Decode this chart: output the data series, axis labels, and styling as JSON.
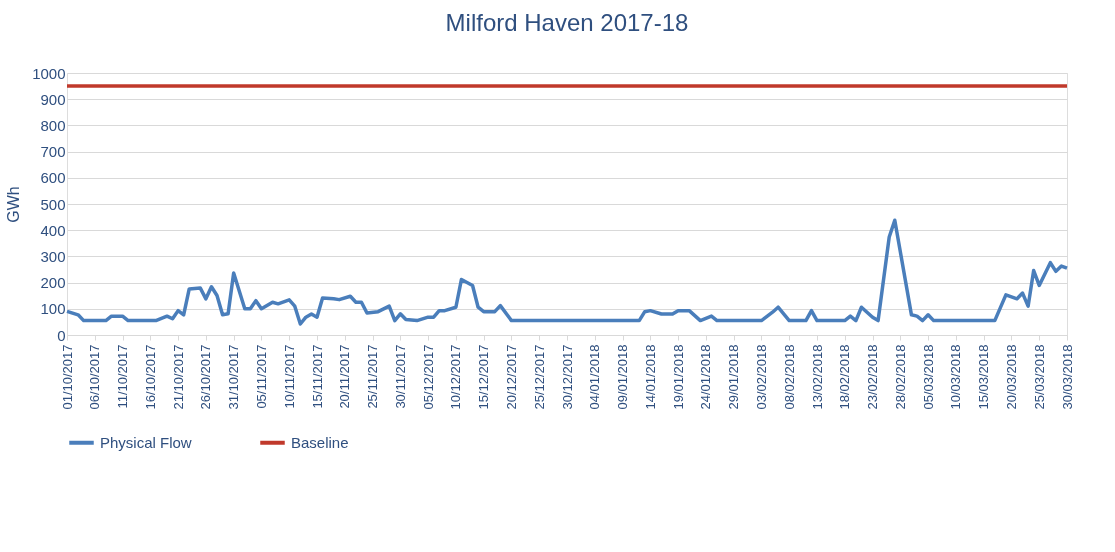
{
  "chart_data": {
    "type": "line",
    "title": "Milford Haven 2017-18",
    "ylabel": "GWh",
    "ylim": [
      0,
      1000
    ],
    "yticks": [
      0,
      100,
      200,
      300,
      400,
      500,
      600,
      700,
      800,
      900,
      1000
    ],
    "xlim": [
      "2017-10-01",
      "2018-03-30"
    ],
    "xticks": [
      {
        "value": "2017-10-01",
        "label": "01/10/2017"
      },
      {
        "value": "2017-10-06",
        "label": "06/10/2017"
      },
      {
        "value": "2017-10-11",
        "label": "11/10/2017"
      },
      {
        "value": "2017-10-16",
        "label": "16/10/2017"
      },
      {
        "value": "2017-10-21",
        "label": "21/10/2017"
      },
      {
        "value": "2017-10-26",
        "label": "26/10/2017"
      },
      {
        "value": "2017-10-31",
        "label": "31/10/2017"
      },
      {
        "value": "2017-11-05",
        "label": "05/11/2017"
      },
      {
        "value": "2017-11-10",
        "label": "10/11/2017"
      },
      {
        "value": "2017-11-15",
        "label": "15/11/2017"
      },
      {
        "value": "2017-11-20",
        "label": "20/11/2017"
      },
      {
        "value": "2017-11-25",
        "label": "25/11/2017"
      },
      {
        "value": "2017-11-30",
        "label": "30/11/2017"
      },
      {
        "value": "2017-12-05",
        "label": "05/12/2017"
      },
      {
        "value": "2017-12-10",
        "label": "10/12/2017"
      },
      {
        "value": "2017-12-15",
        "label": "15/12/2017"
      },
      {
        "value": "2017-12-20",
        "label": "20/12/2017"
      },
      {
        "value": "2017-12-25",
        "label": "25/12/2017"
      },
      {
        "value": "2017-12-30",
        "label": "30/12/2017"
      },
      {
        "value": "2018-01-04",
        "label": "04/01/2018"
      },
      {
        "value": "2018-01-09",
        "label": "09/01/2018"
      },
      {
        "value": "2018-01-14",
        "label": "14/01/2018"
      },
      {
        "value": "2018-01-19",
        "label": "19/01/2018"
      },
      {
        "value": "2018-01-24",
        "label": "24/01/2018"
      },
      {
        "value": "2018-01-29",
        "label": "29/01/2018"
      },
      {
        "value": "2018-02-03",
        "label": "03/02/2018"
      },
      {
        "value": "2018-02-08",
        "label": "08/02/2018"
      },
      {
        "value": "2018-02-13",
        "label": "13/02/2018"
      },
      {
        "value": "2018-02-18",
        "label": "18/02/2018"
      },
      {
        "value": "2018-02-23",
        "label": "23/02/2018"
      },
      {
        "value": "2018-02-28",
        "label": "28/02/2018"
      },
      {
        "value": "2018-03-05",
        "label": "05/03/2018"
      },
      {
        "value": "2018-03-10",
        "label": "10/03/2018"
      },
      {
        "value": "2018-03-15",
        "label": "15/03/2018"
      },
      {
        "value": "2018-03-20",
        "label": "20/03/2018"
      },
      {
        "value": "2018-03-25",
        "label": "25/03/2018"
      },
      {
        "value": "2018-03-30",
        "label": "30/03/2018"
      }
    ],
    "grid": "y",
    "legend": "bottom",
    "line_style": "solid",
    "marker": "none",
    "series": [
      {
        "name": "Physical Flow",
        "color": "#4a7ebb",
        "x": [
          "2017-10-01",
          "2017-10-03",
          "2017-10-04",
          "2017-10-08",
          "2017-10-09",
          "2017-10-11",
          "2017-10-12",
          "2017-10-17",
          "2017-10-19",
          "2017-10-20",
          "2017-10-21",
          "2017-10-22",
          "2017-10-23",
          "2017-10-25",
          "2017-10-26",
          "2017-10-27",
          "2017-10-28",
          "2017-10-29",
          "2017-10-30",
          "2017-10-31",
          "2017-11-02",
          "2017-11-03",
          "2017-11-04",
          "2017-11-05",
          "2017-11-07",
          "2017-11-08",
          "2017-11-10",
          "2017-11-11",
          "2017-11-12",
          "2017-11-13",
          "2017-11-14",
          "2017-11-15",
          "2017-11-16",
          "2017-11-18",
          "2017-11-19",
          "2017-11-21",
          "2017-11-22",
          "2017-11-23",
          "2017-11-24",
          "2017-11-26",
          "2017-11-28",
          "2017-11-29",
          "2017-11-30",
          "2017-12-01",
          "2017-12-03",
          "2017-12-05",
          "2017-12-06",
          "2017-12-07",
          "2017-12-08",
          "2017-12-10",
          "2017-12-11",
          "2017-12-13",
          "2017-12-14",
          "2017-12-15",
          "2017-12-17",
          "2017-12-18",
          "2017-12-20",
          "2018-01-12",
          "2018-01-13",
          "2018-01-14",
          "2018-01-16",
          "2018-01-18",
          "2018-01-19",
          "2018-01-21",
          "2018-01-23",
          "2018-01-25",
          "2018-01-26",
          "2018-02-03",
          "2018-02-05",
          "2018-02-06",
          "2018-02-08",
          "2018-02-11",
          "2018-02-12",
          "2018-02-13",
          "2018-02-18",
          "2018-02-19",
          "2018-02-20",
          "2018-02-21",
          "2018-02-23",
          "2018-02-24",
          "2018-02-26",
          "2018-02-27",
          "2018-03-02",
          "2018-03-03",
          "2018-03-04",
          "2018-03-05",
          "2018-03-06",
          "2018-03-17",
          "2018-03-19",
          "2018-03-21",
          "2018-03-22",
          "2018-03-23",
          "2018-03-24",
          "2018-03-25",
          "2018-03-27",
          "2018-03-28",
          "2018-03-29",
          "2018-03-30"
        ],
        "values": [
          90,
          77,
          55,
          55,
          72,
          72,
          55,
          55,
          72,
          62,
          93,
          77,
          176,
          179,
          138,
          184,
          151,
          77,
          81,
          237,
          100,
          100,
          131,
          100,
          125,
          119,
          134,
          110,
          42,
          68,
          80,
          68,
          141,
          138,
          135,
          148,
          125,
          125,
          84,
          89,
          110,
          55,
          81,
          59,
          55,
          68,
          68,
          93,
          93,
          106,
          212,
          189,
          106,
          89,
          89,
          112,
          55,
          55,
          89,
          93,
          80,
          80,
          93,
          93,
          55,
          72,
          55,
          55,
          87,
          106,
          55,
          55,
          93,
          55,
          55,
          72,
          55,
          106,
          68,
          55,
          374,
          438,
          77,
          72,
          55,
          77,
          55,
          55,
          153,
          138,
          160,
          110,
          246,
          189,
          276,
          243,
          263,
          255
        ]
      },
      {
        "name": "Baseline",
        "color": "#c0392b",
        "x": [
          "2017-10-01",
          "2018-03-30"
        ],
        "values": [
          950,
          950
        ]
      }
    ]
  }
}
